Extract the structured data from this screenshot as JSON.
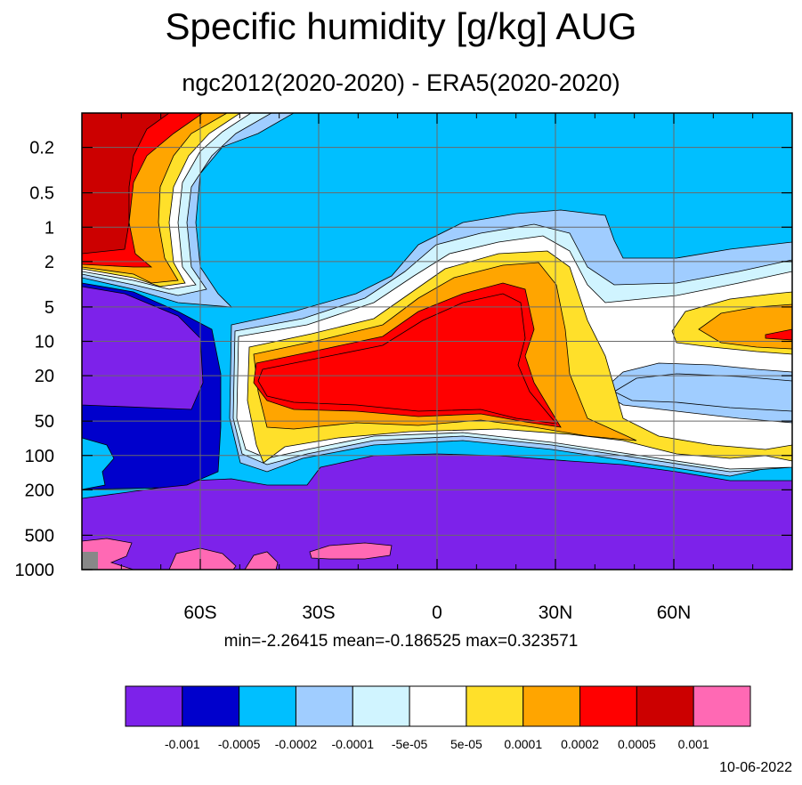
{
  "chart_data": {
    "type": "heatmap",
    "title": "Specific humidity [g/kg] AUG",
    "subtitle": "ngc2012(2020-2020) - ERA5(2020-2020)",
    "stats": "min=-2.26415   mean=-0.186525   max=0.323571",
    "date": "10-06-2022",
    "x_ticks": [
      {
        "value": -60,
        "label": "60S"
      },
      {
        "value": -30,
        "label": "30S"
      },
      {
        "value": 0,
        "label": "0"
      },
      {
        "value": 30,
        "label": "30N"
      },
      {
        "value": 60,
        "label": "60N"
      }
    ],
    "y_ticks": [
      {
        "value": 0.2,
        "label": "0.2"
      },
      {
        "value": 0.5,
        "label": "0.5"
      },
      {
        "value": 1,
        "label": "1"
      },
      {
        "value": 2,
        "label": "2"
      },
      {
        "value": 5,
        "label": "5"
      },
      {
        "value": 10,
        "label": "10"
      },
      {
        "value": 20,
        "label": "20"
      },
      {
        "value": 50,
        "label": "50"
      },
      {
        "value": 100,
        "label": "100"
      },
      {
        "value": 200,
        "label": "200"
      },
      {
        "value": 500,
        "label": "500"
      },
      {
        "value": 1000,
        "label": "1000"
      }
    ],
    "xlim": [
      -90,
      90
    ],
    "ylim": [
      1000,
      0.1
    ],
    "y_scale": "log",
    "grid": true,
    "colorbar": {
      "labels": [
        "-0.001",
        "-0.0005",
        "-0.0002",
        "-0.0001",
        "-5e-05",
        "5e-05",
        "0.0001",
        "0.0002",
        "0.0005",
        "0.001"
      ],
      "colors": [
        "#7d22ea",
        "#0000cc",
        "#00bfff",
        "#a0cdff",
        "#d0f4ff",
        "#ffffff",
        "#ffe02a",
        "#ffa500",
        "#ff0000",
        "#cc0000",
        "#ff69b4"
      ]
    },
    "colors": {
      "background_fill": "#00bfff",
      "missing": "#888888"
    }
  }
}
